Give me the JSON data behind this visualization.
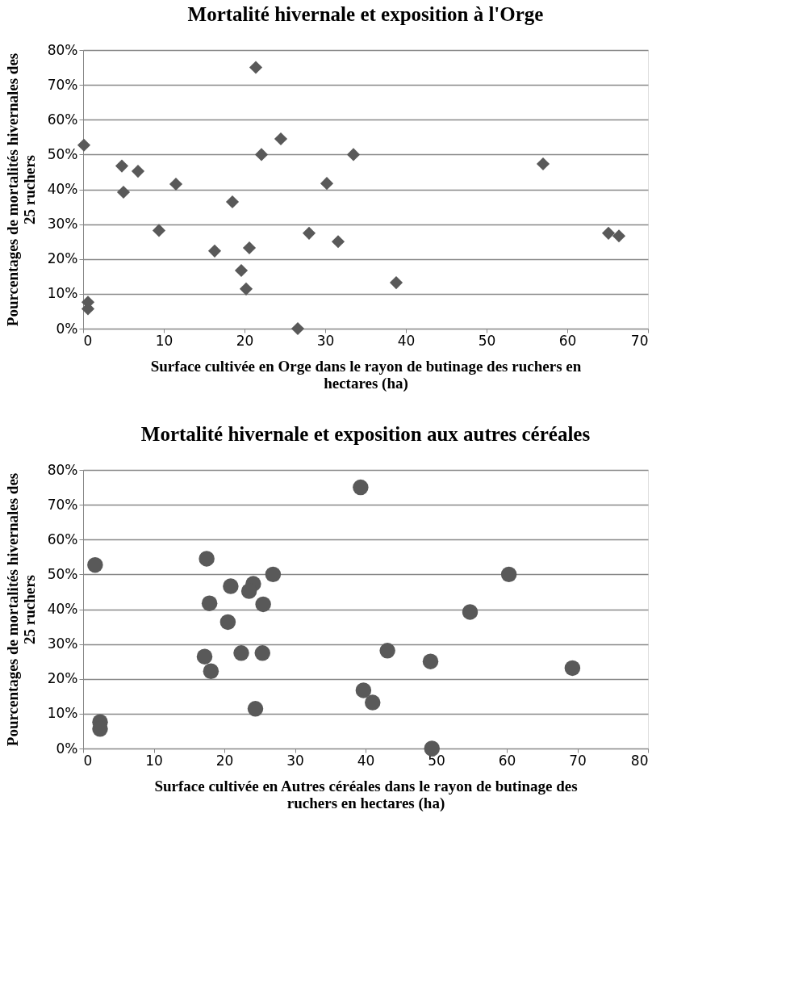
{
  "chart_data": [
    {
      "type": "scatter",
      "title": "Mortalité hivernale et exposition à l'Orge",
      "xlabel": "Surface cultivée en Orge dans le rayon de butinage des ruchers en hectares (ha)",
      "ylabel": "Pourcentages de mortalités hivernales des 25 ruchers",
      "marker": "diamond",
      "grid": "y",
      "xlim": [
        0,
        70
      ],
      "xticks": [
        0,
        10,
        20,
        30,
        40,
        50,
        60,
        70
      ],
      "ylim": [
        0,
        80
      ],
      "yticks": [
        {
          "value": 0,
          "label": "0%"
        },
        {
          "value": 10,
          "label": "10%"
        },
        {
          "value": 20,
          "label": "20%"
        },
        {
          "value": 30,
          "label": "30%"
        },
        {
          "value": 40,
          "label": "40%"
        },
        {
          "value": 50,
          "label": "50%"
        },
        {
          "value": 60,
          "label": "60%"
        },
        {
          "value": 70,
          "label": "70%"
        },
        {
          "value": 80,
          "label": "80%"
        }
      ],
      "series": [
        {
          "color": "#595959",
          "x": [
            0.1,
            4.8,
            5.0,
            6.8,
            9.4,
            11.5,
            16.3,
            18.5,
            19.6,
            20.2,
            20.6,
            21.4,
            22.1,
            24.5,
            26.6,
            28.0,
            30.2,
            31.6,
            33.5,
            38.8,
            57.0,
            65.1,
            66.4,
            0.6,
            0.6
          ],
          "values": [
            52.7,
            46.7,
            39.2,
            45.2,
            28.2,
            41.5,
            22.3,
            36.4,
            16.7,
            11.4,
            23.2,
            75.0,
            50.0,
            54.5,
            0.0,
            27.4,
            41.7,
            25.0,
            50.0,
            13.2,
            47.3,
            27.4,
            26.6,
            7.6,
            5.7
          ]
        }
      ]
    },
    {
      "type": "scatter",
      "title": "Mortalité hivernale et exposition aux autres céréales",
      "xlabel": "Surface cultivée en Autres céréales dans le rayon de butinage des ruchers en hectares (ha)",
      "ylabel": "Pourcentages de mortalités hivernales des 25 ruchers",
      "marker": "circle",
      "grid": "y",
      "xlim": [
        0,
        80
      ],
      "xticks": [
        0,
        10,
        20,
        30,
        40,
        50,
        60,
        70,
        80
      ],
      "ylim": [
        0,
        80
      ],
      "yticks": [
        {
          "value": 0,
          "label": "0%"
        },
        {
          "value": 10,
          "label": "10%"
        },
        {
          "value": 20,
          "label": "20%"
        },
        {
          "value": 30,
          "label": "30%"
        },
        {
          "value": 40,
          "label": "40%"
        },
        {
          "value": 50,
          "label": "50%"
        },
        {
          "value": 60,
          "label": "60%"
        },
        {
          "value": 70,
          "label": "70%"
        },
        {
          "value": 80,
          "label": "80%"
        }
      ],
      "series": [
        {
          "color": "#595959",
          "x": [
            1.7,
            17.5,
            26.9,
            60.3,
            20.9,
            24.1,
            23.5,
            17.9,
            25.5,
            20.5,
            54.8,
            39.3,
            17.2,
            22.4,
            25.4,
            18.1,
            43.1,
            49.2,
            69.3,
            39.7,
            41.0,
            24.4,
            49.4,
            2.4,
            2.4
          ],
          "values": [
            52.7,
            54.5,
            50.0,
            50.0,
            46.6,
            47.3,
            45.2,
            41.7,
            41.4,
            36.3,
            39.2,
            75.0,
            26.4,
            27.4,
            27.4,
            22.2,
            28.1,
            25.0,
            23.1,
            16.7,
            13.2,
            11.4,
            0.0,
            7.6,
            5.6
          ]
        }
      ]
    }
  ]
}
